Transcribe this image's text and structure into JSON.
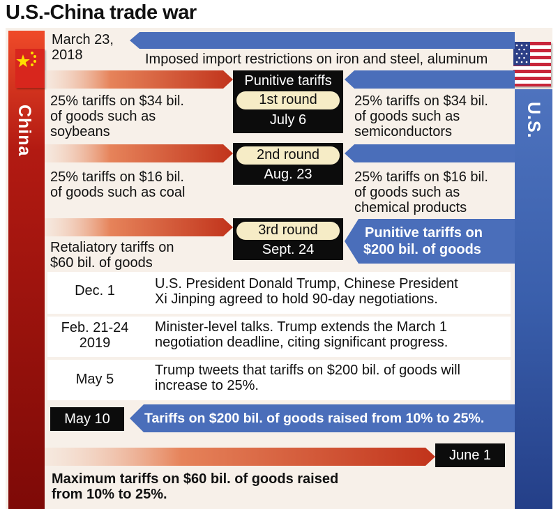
{
  "title": "U.S.-China trade war",
  "sides": {
    "china": "China",
    "us": "U.S."
  },
  "march": {
    "date_line1": "March 23,",
    "date_line2": "2018",
    "text": "Imposed import restrictions on iron and steel, aluminum"
  },
  "round1": {
    "header": "Punitive tariffs",
    "label": "1st round",
    "date": "July 6",
    "china_text": [
      "25% tariffs on $34 bil.",
      "of goods such as",
      "soybeans"
    ],
    "us_text": [
      "25% tariffs on $34 bil.",
      "of goods such as",
      "semiconductors"
    ]
  },
  "round2": {
    "label": "2nd round",
    "date": "Aug. 23",
    "china_text": [
      "25% tariffs on $16 bil.",
      "of goods such as coal"
    ],
    "us_text": [
      "25% tariffs on $16 bil.",
      "of goods such as",
      "chemical products"
    ]
  },
  "round3": {
    "label": "3rd round",
    "date": "Sept. 24",
    "china_text": [
      "Retaliatory tariffs on",
      "$60 bil. of goods"
    ],
    "us_text": [
      "Punitive tariffs on",
      "$200 bil. of goods"
    ]
  },
  "events": [
    {
      "date": [
        "Dec. 1"
      ],
      "text": [
        "U.S. President Donald Trump, Chinese President",
        "Xi Jinping agreed to hold 90-day negotiations."
      ]
    },
    {
      "date": [
        "Feb. 21-24",
        "2019"
      ],
      "text": [
        "Minister-level talks. Trump extends the March 1",
        "negotiation deadline, citing significant progress."
      ]
    },
    {
      "date": [
        "May 5"
      ],
      "text": [
        "Trump tweets that tariffs on $200 bil. of goods will",
        "increase to 25%."
      ]
    }
  ],
  "may10": {
    "date": "May 10",
    "text": "Tariffs on $200 bil. of goods raised from 10% to 25%."
  },
  "june1": {
    "date": "June 1",
    "text": [
      "Maximum tariffs on $60 bil. of goods raised",
      "from 10% to 25%."
    ]
  },
  "colors": {
    "china_red": "#b21a12",
    "us_blue": "#3a5fac",
    "pill": "#f6ecc6",
    "background": "#f7f0e9"
  }
}
